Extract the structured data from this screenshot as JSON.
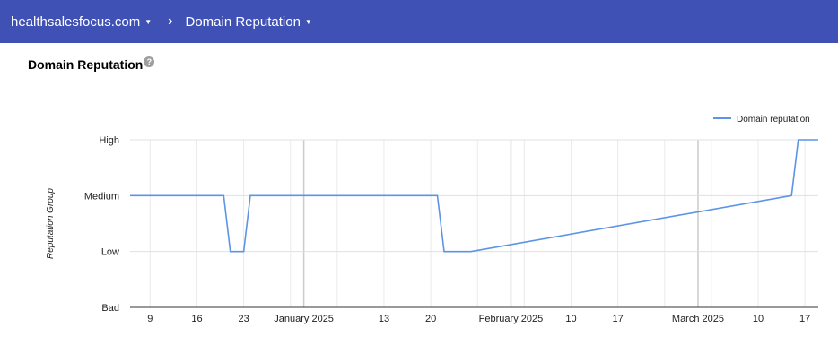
{
  "header": {
    "property": "healthsalesfocus.com",
    "report": "Domain Reputation"
  },
  "page": {
    "title": "Domain Reputation"
  },
  "colors": {
    "header_bg": "#3f51b5",
    "line": "#5c94e6"
  },
  "icons": {
    "separator": "chevron-right-icon",
    "help": "help-icon",
    "dropdown": "caret-down-icon"
  },
  "chart_data": {
    "type": "line",
    "ylabel": "Reputation Group",
    "y_categories": [
      "Bad",
      "Low",
      "Medium",
      "High"
    ],
    "x_tick_labels": [
      "9",
      "16",
      "23",
      "January 2025",
      "13",
      "20",
      "February 2025",
      "10",
      "17",
      "March 2025",
      "10",
      "17"
    ],
    "xlim": [
      "2024-12-06",
      "2025-03-19"
    ],
    "legend": {
      "position": "top-right",
      "label": "Domain reputation"
    },
    "grid": true,
    "series": [
      {
        "name": "Domain reputation",
        "points": [
          {
            "x": "2024-12-06",
            "y": "Medium"
          },
          {
            "x": "2024-12-20",
            "y": "Medium"
          },
          {
            "x": "2024-12-21",
            "y": "Low"
          },
          {
            "x": "2024-12-23",
            "y": "Low"
          },
          {
            "x": "2024-12-24",
            "y": "Medium"
          },
          {
            "x": "2025-01-21",
            "y": "Medium"
          },
          {
            "x": "2025-01-22",
            "y": "Low"
          },
          {
            "x": "2025-01-26",
            "y": "Low"
          },
          {
            "x": "2025-03-15",
            "y": "Medium"
          },
          {
            "x": "2025-03-16",
            "y": "High"
          },
          {
            "x": "2025-03-19",
            "y": "High"
          }
        ]
      }
    ]
  }
}
